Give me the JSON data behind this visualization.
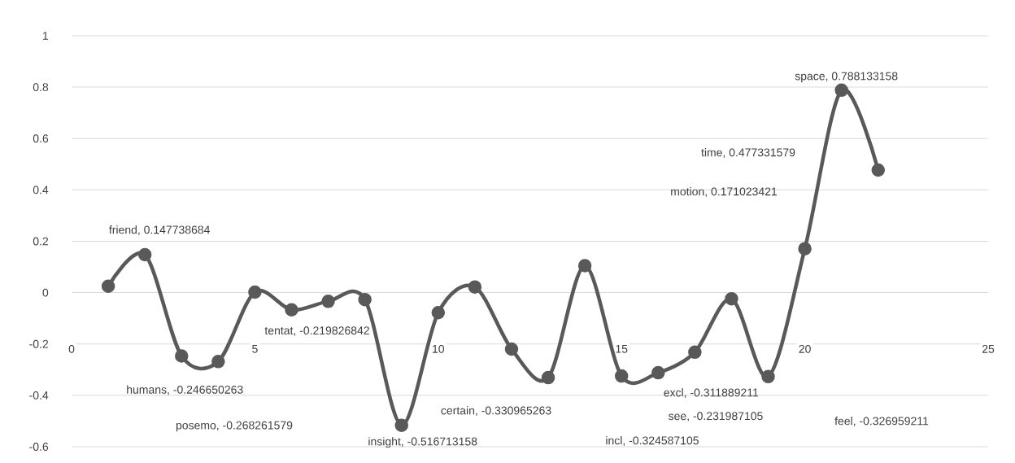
{
  "chart_data": {
    "type": "line",
    "x": [
      1,
      2,
      3,
      4,
      5,
      6,
      7,
      8,
      9,
      10,
      11,
      12,
      13,
      14,
      15,
      16,
      17,
      18,
      19,
      20,
      21,
      22
    ],
    "series": [
      {
        "color": "#595959",
        "values": [
          0.025,
          0.147738684,
          -0.246650263,
          -0.268261579,
          0.002,
          -0.067,
          -0.034,
          -0.027,
          -0.516713158,
          -0.078,
          0.022,
          -0.219826842,
          -0.330965263,
          0.105,
          -0.324587105,
          -0.311889211,
          -0.231987105,
          -0.024,
          -0.326959211,
          0.171023421,
          0.788133158,
          0.477331579
        ]
      }
    ],
    "xlim": [
      0,
      25
    ],
    "xticks": [
      0,
      5,
      10,
      15,
      20,
      25
    ],
    "ylim": [
      -0.6,
      1
    ],
    "yticks": [
      -0.6,
      -0.4,
      -0.2,
      0,
      0.2,
      0.4,
      0.6,
      0.8,
      1
    ],
    "grid": "y",
    "marker": "circle",
    "line_style": "solid",
    "annotations": [
      {
        "text": "friend, 0.147738684",
        "x": 2,
        "y": 0.147738684
      },
      {
        "text": "humans, -0.246650263",
        "x": 3,
        "y": -0.246650263
      },
      "posemo, -0.268261579",
      {
        "text": "insight, -0.516713158",
        "x": 9,
        "y": -0.516713158
      },
      "tentat, -0.219826842",
      {
        "text": "certain, -0.330965263",
        "x": 13,
        "y": -0.330965263
      },
      "incl, -0.324587105",
      {
        "text": "excl, -0.311889211",
        "x": 16,
        "y": -0.311889211
      },
      "see, -0.231987105",
      "feel, -0.326959211",
      "motion, 0.171023421",
      {
        "text": "space, 0.788133158",
        "x": 21,
        "y": 0.788133158
      },
      "time, 0.477331579"
    ]
  }
}
